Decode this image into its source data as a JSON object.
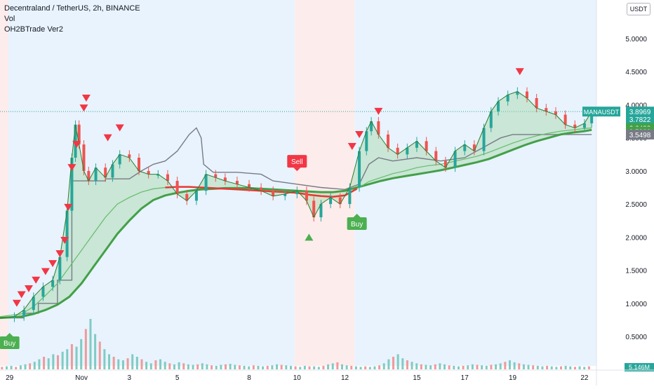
{
  "header": {
    "title": "Decentraland / TetherUS, 2h, BINANCE",
    "indicator_vol": "Vol",
    "indicator_custom": "OH2BTrade Ver2",
    "currency_button": "USDT"
  },
  "colors": {
    "up": "#26a69a",
    "down": "#ef5350",
    "green_line": "#43a047",
    "red_line": "#e53935",
    "bg_blue": "#e8f3fd",
    "bg_pink": "#fdecec",
    "dark_line": "#787b86"
  },
  "chart_data": {
    "type": "line",
    "symbol": "MANAUSDT",
    "ylim": [
      0.3,
      5.55
    ],
    "yticks": [
      0.5,
      1.0,
      1.5,
      2.0,
      2.5,
      3.0,
      3.5,
      4.0,
      4.5,
      5.0
    ],
    "ytick_labels": [
      "0.5000",
      "1.0000",
      "1.5000",
      "2.0000",
      "2.5000",
      "3.0000",
      "3.5000",
      "4.0000",
      "4.5000",
      "5.0000"
    ],
    "xticks": [
      {
        "label": "29",
        "x": 0
      },
      {
        "label": "Nov",
        "x": 3
      },
      {
        "label": "3",
        "x": 5
      },
      {
        "label": "5",
        "x": 7
      },
      {
        "label": "8",
        "x": 10
      },
      {
        "label": "10",
        "x": 12
      },
      {
        "label": "12",
        "x": 14
      },
      {
        "label": "15",
        "x": 17
      },
      {
        "label": "17",
        "x": 19
      },
      {
        "label": "19",
        "x": 21
      },
      {
        "label": "22",
        "x": 24
      }
    ],
    "x_range": [
      -0.4,
      24.5
    ],
    "background_regions": [
      {
        "from": -0.4,
        "to": -0.05,
        "kind": "pink"
      },
      {
        "from": -0.05,
        "to": 11.9,
        "kind": "blue"
      },
      {
        "from": 11.9,
        "to": 14.4,
        "kind": "pink"
      },
      {
        "from": 14.4,
        "to": 24.5,
        "kind": "blue"
      }
    ],
    "price_points": [
      [
        -0.4,
        0.78
      ],
      [
        0.2,
        0.8
      ],
      [
        0.6,
        0.9
      ],
      [
        1.0,
        1.1
      ],
      [
        1.4,
        1.25
      ],
      [
        1.8,
        1.35
      ],
      [
        2.1,
        1.7
      ],
      [
        2.4,
        2.4
      ],
      [
        2.6,
        3.2
      ],
      [
        2.75,
        3.7
      ],
      [
        2.9,
        3.4
      ],
      [
        3.1,
        3.0
      ],
      [
        3.3,
        2.85
      ],
      [
        3.6,
        3.05
      ],
      [
        4.0,
        2.9
      ],
      [
        4.3,
        3.1
      ],
      [
        4.6,
        3.25
      ],
      [
        5.0,
        3.2
      ],
      [
        5.4,
        3.0
      ],
      [
        5.8,
        2.95
      ],
      [
        6.2,
        2.95
      ],
      [
        6.6,
        2.85
      ],
      [
        7.0,
        2.65
      ],
      [
        7.4,
        2.55
      ],
      [
        7.8,
        2.7
      ],
      [
        8.2,
        2.95
      ],
      [
        8.6,
        2.9
      ],
      [
        9.0,
        2.85
      ],
      [
        9.5,
        2.8
      ],
      [
        10.0,
        2.75
      ],
      [
        10.5,
        2.7
      ],
      [
        11.0,
        2.62
      ],
      [
        11.5,
        2.65
      ],
      [
        12.0,
        2.7
      ],
      [
        12.4,
        2.55
      ],
      [
        12.7,
        2.3
      ],
      [
        13.0,
        2.5
      ],
      [
        13.4,
        2.6
      ],
      [
        13.8,
        2.5
      ],
      [
        14.2,
        2.75
      ],
      [
        14.6,
        3.3
      ],
      [
        14.9,
        3.6
      ],
      [
        15.1,
        3.75
      ],
      [
        15.4,
        3.55
      ],
      [
        15.8,
        3.35
      ],
      [
        16.2,
        3.25
      ],
      [
        16.6,
        3.35
      ],
      [
        17.0,
        3.45
      ],
      [
        17.4,
        3.3
      ],
      [
        17.8,
        3.15
      ],
      [
        18.2,
        3.05
      ],
      [
        18.6,
        3.3
      ],
      [
        19.0,
        3.4
      ],
      [
        19.4,
        3.3
      ],
      [
        19.8,
        3.65
      ],
      [
        20.1,
        3.9
      ],
      [
        20.4,
        4.05
      ],
      [
        20.8,
        4.15
      ],
      [
        21.2,
        4.2
      ],
      [
        21.6,
        4.1
      ],
      [
        22.0,
        3.95
      ],
      [
        22.4,
        3.9
      ],
      [
        22.8,
        3.85
      ],
      [
        23.2,
        3.7
      ],
      [
        23.6,
        3.65
      ],
      [
        24.0,
        3.72
      ],
      [
        24.3,
        3.9
      ]
    ],
    "fast_ma": [
      [
        -0.4,
        0.8
      ],
      [
        0.5,
        0.84
      ],
      [
        1.0,
        0.95
      ],
      [
        1.5,
        1.12
      ],
      [
        2.0,
        1.3
      ],
      [
        2.5,
        1.55
      ],
      [
        3.0,
        1.8
      ],
      [
        3.5,
        2.05
      ],
      [
        4.0,
        2.3
      ],
      [
        4.5,
        2.5
      ],
      [
        5.0,
        2.6
      ],
      [
        5.5,
        2.68
      ],
      [
        6.0,
        2.73
      ],
      [
        6.5,
        2.75
      ],
      [
        7.0,
        2.76
      ],
      [
        7.5,
        2.76
      ],
      [
        8.0,
        2.75
      ],
      [
        8.5,
        2.74
      ],
      [
        9.0,
        2.73
      ],
      [
        9.5,
        2.72
      ],
      [
        10.0,
        2.71
      ],
      [
        10.5,
        2.7
      ],
      [
        11.0,
        2.69
      ],
      [
        11.5,
        2.68
      ],
      [
        12.0,
        2.67
      ],
      [
        12.5,
        2.64
      ],
      [
        13.0,
        2.62
      ],
      [
        13.5,
        2.61
      ],
      [
        14.0,
        2.63
      ],
      [
        14.5,
        2.73
      ],
      [
        15.0,
        2.84
      ],
      [
        15.5,
        2.9
      ],
      [
        16.0,
        2.96
      ],
      [
        16.5,
        3.0
      ],
      [
        17.0,
        3.05
      ],
      [
        17.5,
        3.08
      ],
      [
        18.0,
        3.1
      ],
      [
        18.5,
        3.14
      ],
      [
        19.0,
        3.18
      ],
      [
        19.5,
        3.22
      ],
      [
        20.0,
        3.28
      ],
      [
        20.5,
        3.35
      ],
      [
        21.0,
        3.42
      ],
      [
        21.5,
        3.48
      ],
      [
        22.0,
        3.53
      ],
      [
        22.5,
        3.57
      ],
      [
        23.0,
        3.6
      ],
      [
        23.5,
        3.62
      ],
      [
        24.0,
        3.64
      ],
      [
        24.3,
        3.65
      ]
    ],
    "slow_ma": [
      [
        -0.4,
        0.78
      ],
      [
        0.5,
        0.8
      ],
      [
        1.0,
        0.84
      ],
      [
        1.5,
        0.9
      ],
      [
        2.0,
        0.98
      ],
      [
        2.5,
        1.1
      ],
      [
        3.0,
        1.3
      ],
      [
        3.5,
        1.55
      ],
      [
        4.0,
        1.8
      ],
      [
        4.5,
        2.05
      ],
      [
        5.0,
        2.25
      ],
      [
        5.5,
        2.43
      ],
      [
        6.0,
        2.56
      ],
      [
        6.5,
        2.63
      ],
      [
        7.0,
        2.67
      ],
      [
        7.5,
        2.7
      ],
      [
        8.0,
        2.72
      ],
      [
        8.5,
        2.73
      ],
      [
        9.0,
        2.74
      ],
      [
        9.5,
        2.74
      ],
      [
        10.0,
        2.74
      ],
      [
        10.5,
        2.73
      ],
      [
        11.0,
        2.72
      ],
      [
        11.5,
        2.71
      ],
      [
        12.0,
        2.7
      ],
      [
        12.5,
        2.69
      ],
      [
        13.0,
        2.68
      ],
      [
        13.5,
        2.68
      ],
      [
        14.0,
        2.7
      ],
      [
        14.5,
        2.75
      ],
      [
        15.0,
        2.8
      ],
      [
        15.5,
        2.85
      ],
      [
        16.0,
        2.89
      ],
      [
        16.5,
        2.92
      ],
      [
        17.0,
        2.95
      ],
      [
        17.5,
        2.98
      ],
      [
        18.0,
        3.01
      ],
      [
        18.5,
        3.05
      ],
      [
        19.0,
        3.09
      ],
      [
        19.5,
        3.13
      ],
      [
        20.0,
        3.18
      ],
      [
        20.5,
        3.25
      ],
      [
        21.0,
        3.32
      ],
      [
        21.5,
        3.39
      ],
      [
        22.0,
        3.45
      ],
      [
        22.5,
        3.5
      ],
      [
        23.0,
        3.55
      ],
      [
        23.5,
        3.58
      ],
      [
        24.0,
        3.6
      ],
      [
        24.3,
        3.62
      ]
    ],
    "stop_line": [
      [
        -0.4,
        0.78
      ],
      [
        0.6,
        0.78
      ],
      [
        0.6,
        0.85
      ],
      [
        1.2,
        0.85
      ],
      [
        1.2,
        1.0
      ],
      [
        2.0,
        1.0
      ],
      [
        2.0,
        1.35
      ],
      [
        2.6,
        1.35
      ],
      [
        2.6,
        2.85
      ],
      [
        4.0,
        2.85
      ],
      [
        4.0,
        2.88
      ],
      [
        5.0,
        2.88
      ],
      [
        5.5,
        3.0
      ],
      [
        6.0,
        3.1
      ],
      [
        6.5,
        3.15
      ],
      [
        7.0,
        3.3
      ],
      [
        7.5,
        3.55
      ],
      [
        7.8,
        3.65
      ],
      [
        8.0,
        3.5
      ],
      [
        8.1,
        3.1
      ],
      [
        8.5,
        2.98
      ],
      [
        9.5,
        2.98
      ],
      [
        10.5,
        2.95
      ],
      [
        11.0,
        2.85
      ],
      [
        12.0,
        2.8
      ],
      [
        13.0,
        2.75
      ],
      [
        14.0,
        2.72
      ],
      [
        14.6,
        2.8
      ],
      [
        15.0,
        3.1
      ],
      [
        15.4,
        3.2
      ],
      [
        16.0,
        3.15
      ],
      [
        17.0,
        3.2
      ],
      [
        18.0,
        3.15
      ],
      [
        19.0,
        3.2
      ],
      [
        20.0,
        3.4
      ],
      [
        20.5,
        3.5
      ],
      [
        21.0,
        3.55
      ],
      [
        21.5,
        3.55
      ],
      [
        22.0,
        3.55
      ],
      [
        23.0,
        3.55
      ],
      [
        24.3,
        3.55
      ]
    ],
    "sell_markers": [
      [
        0.3,
        1.0
      ],
      [
        0.5,
        1.13
      ],
      [
        0.8,
        1.22
      ],
      [
        1.1,
        1.35
      ],
      [
        1.5,
        1.48
      ],
      [
        1.8,
        1.6
      ],
      [
        2.1,
        1.75
      ],
      [
        2.3,
        1.95
      ],
      [
        2.45,
        2.45
      ],
      [
        2.6,
        3.05
      ],
      [
        2.8,
        3.4
      ],
      [
        3.1,
        3.95
      ],
      [
        3.2,
        4.1
      ],
      [
        4.1,
        3.5
      ],
      [
        4.6,
        3.65
      ],
      [
        14.3,
        3.37
      ],
      [
        14.6,
        3.55
      ],
      [
        15.4,
        3.9
      ],
      [
        21.3,
        4.5
      ]
    ],
    "buy_triangles": [
      [
        12.5,
        2.0
      ]
    ],
    "labels": [
      {
        "text": "Sell",
        "x": 12.0,
        "y": 3.05,
        "kind": "sell"
      },
      {
        "text": "Buy",
        "x": 14.5,
        "y": 2.3,
        "kind": "buy"
      },
      {
        "text": "Buy",
        "x": 0.0,
        "y": 0.5,
        "kind": "buy"
      }
    ],
    "price_badges": [
      {
        "text": "3.8969",
        "value": 3.8969,
        "color": "#26a69a"
      },
      {
        "text": "3.7822",
        "value": 3.7822,
        "color": "#26a69a"
      },
      {
        "text": "3.6488",
        "value": 3.6488,
        "color": "#43a047"
      },
      {
        "text": "3.5960",
        "value": 3.596,
        "color": "#43a047"
      },
      {
        "text": "3.5498",
        "value": 3.5498,
        "color": "#787b86"
      }
    ],
    "symbol_badge": {
      "text": "MANAUSDT",
      "value": 3.8969
    },
    "volume_label": "5.146M",
    "volume": [
      0.05,
      0.06,
      0.07,
      0.05,
      0.08,
      0.1,
      0.12,
      0.15,
      0.2,
      0.25,
      0.22,
      0.3,
      0.28,
      0.35,
      0.4,
      0.5,
      0.45,
      0.6,
      0.8,
      1.0,
      0.7,
      0.55,
      0.4,
      0.3,
      0.25,
      0.2,
      0.18,
      0.22,
      0.3,
      0.25,
      0.2,
      0.15,
      0.12,
      0.18,
      0.2,
      0.15,
      0.12,
      0.1,
      0.14,
      0.12,
      0.1,
      0.09,
      0.1,
      0.12,
      0.1,
      0.08,
      0.07,
      0.09,
      0.1,
      0.11,
      0.09,
      0.08,
      0.07,
      0.06,
      0.08,
      0.07,
      0.06,
      0.07,
      0.08,
      0.1,
      0.09,
      0.08,
      0.07,
      0.06,
      0.05,
      0.07,
      0.06,
      0.06,
      0.05,
      0.07,
      0.1,
      0.12,
      0.14,
      0.1,
      0.08,
      0.07,
      0.06,
      0.05,
      0.06,
      0.05,
      0.06,
      0.08,
      0.12,
      0.2,
      0.25,
      0.3,
      0.22,
      0.18,
      0.15,
      0.12,
      0.1,
      0.09,
      0.08,
      0.1,
      0.12,
      0.1,
      0.08,
      0.07,
      0.06,
      0.07,
      0.08,
      0.1,
      0.09,
      0.08,
      0.07,
      0.09,
      0.1,
      0.12,
      0.15,
      0.18,
      0.14,
      0.12,
      0.1,
      0.09,
      0.08,
      0.07,
      0.06,
      0.07,
      0.06,
      0.05,
      0.06,
      0.07,
      0.06,
      0.05,
      0.06,
      0.05,
      0.06
    ]
  }
}
